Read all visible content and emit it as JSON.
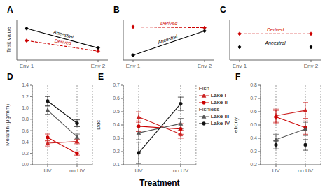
{
  "chart_data": [
    {
      "type": "line",
      "title": "A",
      "y_label": "Trait value",
      "categories": [
        "Env 1",
        "Env 2"
      ],
      "ylim": [
        0,
        1.0
      ],
      "tick_labels": "x",
      "series": [
        {
          "name": "Ancestral",
          "color": "black",
          "line_style": "solid",
          "marker": "diamond",
          "values": [
            0.78,
            0.3
          ]
        },
        {
          "name": "Derived",
          "color": "#cc0000",
          "line_style": "dashed",
          "marker": "diamond",
          "values": [
            0.48,
            0.22
          ]
        }
      ]
    },
    {
      "type": "line",
      "title": "B",
      "categories": [
        "Env 1",
        "Env 2"
      ],
      "ylim": [
        0,
        1.0
      ],
      "tick_labels": "x",
      "series": [
        {
          "name": "Ancestral",
          "color": "black",
          "line_style": "solid",
          "marker": "diamond",
          "values": [
            0.12,
            0.72
          ]
        },
        {
          "name": "Derived",
          "color": "#cc0000",
          "line_style": "dashed",
          "marker": "diamond",
          "values": [
            0.82,
            0.8
          ]
        }
      ]
    },
    {
      "type": "line",
      "title": "C",
      "categories": [
        "Env 1",
        "Env 2"
      ],
      "ylim": [
        0,
        1.0
      ],
      "tick_labels": "x",
      "series": [
        {
          "name": "Ancestral",
          "color": "black",
          "line_style": "solid",
          "marker": "diamond",
          "values": [
            0.32,
            0.32
          ]
        },
        {
          "name": "Derived",
          "color": "#cc0000",
          "line_style": "dashed",
          "marker": "diamond",
          "values": [
            0.65,
            0.65
          ]
        }
      ]
    },
    {
      "type": "line",
      "title": "D",
      "y_label": "Melanin (μg/mm)",
      "categories": [
        "UV",
        "no UV"
      ],
      "ylim": [
        0.0,
        1.4
      ],
      "yticks": [
        {
          "value": 0.0,
          "label": "0.0"
        },
        0.2,
        0.4,
        0.6,
        0.8,
        {
          "value": 1.0,
          "label": "1.0"
        },
        1.2,
        1.4
      ],
      "grid": "x",
      "series": [
        {
          "name": "Lake I",
          "group": "Fish",
          "color": "#cc2222",
          "marker": "triangle",
          "line_style": "solid",
          "values": [
            0.38,
            0.41
          ],
          "errors": [
            0.05,
            0.04
          ]
        },
        {
          "name": "Lake II",
          "group": "Fish",
          "color": "#cc0000",
          "marker": "circle",
          "line_style": "solid",
          "values": [
            0.48,
            0.2
          ],
          "errors": [
            0.06,
            0.03
          ]
        },
        {
          "name": "Lake III",
          "group": "Fishless",
          "color": "#555555",
          "marker": "triangle",
          "line_style": "solid",
          "values": [
            0.96,
            0.49
          ],
          "errors": [
            0.07,
            0.05
          ]
        },
        {
          "name": "Lake IV",
          "group": "Fishless",
          "color": "#111111",
          "marker": "circle",
          "line_style": "solid",
          "values": [
            1.12,
            0.73
          ],
          "errors": [
            0.08,
            0.06
          ]
        }
      ]
    },
    {
      "type": "line",
      "title": "E",
      "y_label": "Ddc",
      "x_label": "Treatment",
      "categories": [
        "UV",
        "no UV"
      ],
      "ylim": [
        0.1,
        0.7
      ],
      "yticks": [
        0.1,
        0.2,
        0.3,
        0.4,
        0.5,
        0.6,
        0.7
      ],
      "grid": "x",
      "legend": "upper right",
      "series": [
        {
          "name": "Lake I",
          "group": "Fish",
          "color": "#cc2222",
          "marker": "triangle",
          "line_style": "solid",
          "values": [
            0.46,
            0.33
          ],
          "errors": [
            0.04,
            0.03
          ]
        },
        {
          "name": "Lake II",
          "group": "Fish",
          "color": "#cc0000",
          "marker": "circle",
          "line_style": "solid",
          "values": [
            0.39,
            0.37
          ],
          "errors": [
            0.04,
            0.04
          ]
        },
        {
          "name": "Lake III",
          "group": "Fishless",
          "color": "#555555",
          "marker": "triangle",
          "line_style": "solid",
          "values": [
            0.34,
            0.41
          ],
          "errors": [
            0.05,
            0.04
          ]
        },
        {
          "name": "Lake IV",
          "group": "Fishless",
          "color": "#111111",
          "marker": "circle",
          "line_style": "solid",
          "values": [
            0.19,
            0.56
          ],
          "errors": [
            0.08,
            0.05
          ]
        }
      ]
    },
    {
      "type": "line",
      "title": "F",
      "y_label": "ebony",
      "categories": [
        "UV",
        "no UV"
      ],
      "ylim": [
        0.2,
        0.8
      ],
      "yticks": [
        0.2,
        0.3,
        0.4,
        0.5,
        0.6,
        0.7,
        0.8
      ],
      "grid": "x",
      "series": [
        {
          "name": "Lake I",
          "group": "Fish",
          "color": "#cc2222",
          "marker": "triangle",
          "line_style": "solid",
          "values": [
            0.57,
            0.61
          ],
          "errors": [
            0.05,
            0.06
          ]
        },
        {
          "name": "Lake II",
          "group": "Fish",
          "color": "#cc0000",
          "marker": "circle",
          "line_style": "solid",
          "values": [
            0.56,
            0.48
          ],
          "errors": [
            0.05,
            0.05
          ]
        },
        {
          "name": "Lake III",
          "group": "Fishless",
          "color": "#555555",
          "marker": "triangle",
          "line_style": "solid",
          "values": [
            0.39,
            0.47
          ],
          "errors": [
            0.04,
            0.05
          ]
        },
        {
          "name": "Lake IV",
          "group": "Fishless",
          "color": "#111111",
          "marker": "circle",
          "line_style": "solid",
          "values": [
            0.35,
            0.35
          ],
          "errors": [
            0.03,
            0.04
          ]
        }
      ]
    }
  ]
}
